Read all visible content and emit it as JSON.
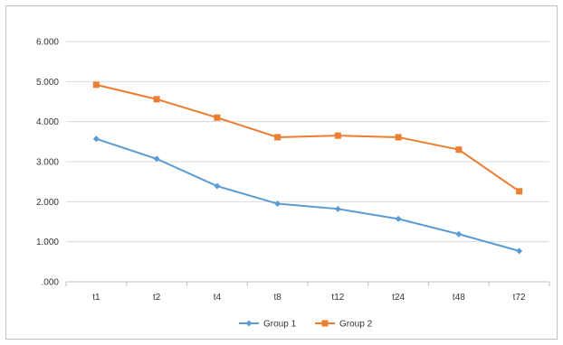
{
  "chart_data": {
    "type": "line",
    "categories": [
      "t1",
      "t2",
      "t4",
      "t8",
      "t12",
      "t24",
      "t48",
      "t72"
    ],
    "series": [
      {
        "name": "Group 1",
        "color": "#5b9bd5",
        "marker": "diamond",
        "values": [
          3.57,
          3.07,
          2.39,
          1.95,
          1.82,
          1.57,
          1.19,
          0.77
        ]
      },
      {
        "name": "Group 2",
        "color": "#ed7d31",
        "marker": "square",
        "values": [
          4.92,
          4.56,
          4.1,
          3.61,
          3.65,
          3.61,
          3.3,
          2.26
        ]
      }
    ],
    "yticks": [
      ".000",
      "1.000",
      "2.000",
      "3.000",
      "4.000",
      "5.000",
      "6.000"
    ],
    "ylim": [
      0,
      6
    ],
    "grid": true,
    "legend": "bottom",
    "title": "",
    "xlabel": "",
    "ylabel": ""
  }
}
